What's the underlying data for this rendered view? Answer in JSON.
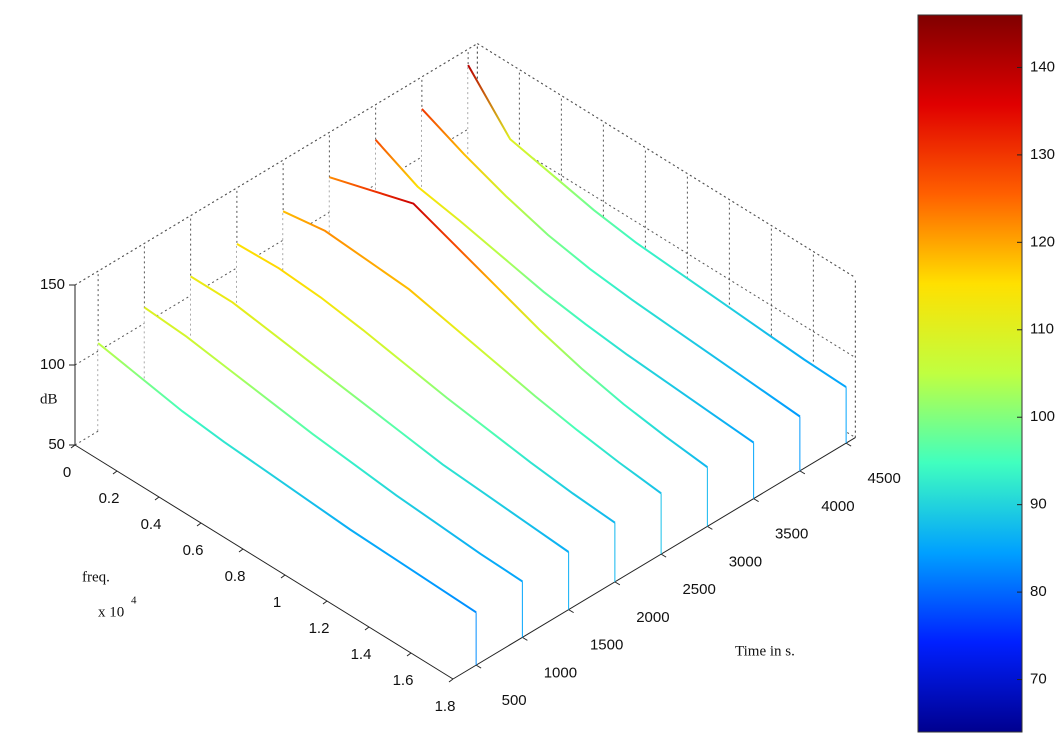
{
  "chart_data": {
    "type": "waterfall",
    "x_label": "freq.",
    "x_multiplier": "x 10",
    "x_exponent": "4",
    "y_label": "Time in s.",
    "z_label": "dB",
    "x": [
      0,
      0.2,
      0.4,
      0.6,
      0.8,
      1,
      1.2,
      1.4,
      1.6,
      1.8
    ],
    "xlim": [
      0,
      1.8
    ],
    "xticks": [
      0,
      0.2,
      0.4,
      0.6,
      0.8,
      1,
      1.2,
      1.4,
      1.6,
      1.8
    ],
    "ylim": [
      250,
      4600
    ],
    "yticks": [
      500,
      1000,
      1500,
      2000,
      2500,
      3000,
      3500,
      4000,
      4500
    ],
    "zlim": [
      50,
      150
    ],
    "zticks": [
      50,
      100,
      150
    ],
    "grid": true,
    "series": [
      {
        "y": 4500,
        "values": [
          140,
          110,
          104,
          98,
          94,
          92,
          90,
          88,
          86,
          85
        ]
      },
      {
        "y": 4000,
        "values": [
          130,
          118,
          108,
          100,
          95,
          92,
          90,
          88,
          86,
          84
        ]
      },
      {
        "y": 3500,
        "values": [
          128,
          115,
          110,
          104,
          98,
          94,
          91,
          89,
          87,
          85
        ]
      },
      {
        "y": 3000,
        "values": [
          122,
          130,
          138,
          128,
          118,
          108,
          100,
          94,
          90,
          87
        ]
      },
      {
        "y": 2500,
        "values": [
          118,
          122,
          120,
          118,
          112,
          106,
          100,
          95,
          91,
          88
        ]
      },
      {
        "y": 2000,
        "values": [
          115,
          116,
          114,
          110,
          105,
          100,
          96,
          92,
          89,
          87
        ]
      },
      {
        "y": 1500,
        "values": [
          112,
          112,
          108,
          104,
          100,
          96,
          92,
          90,
          88,
          86
        ]
      },
      {
        "y": 1000,
        "values": [
          110,
          108,
          104,
          100,
          96,
          93,
          90,
          88,
          86,
          85
        ]
      },
      {
        "y": 500,
        "values": [
          105,
          100,
          95,
          92,
          90,
          88,
          86,
          85,
          84,
          83
        ]
      }
    ],
    "colorbar": {
      "clim": [
        64,
        146
      ],
      "ticks": [
        70,
        80,
        90,
        100,
        110,
        120,
        130,
        140
      ],
      "colormap": [
        "#00008f",
        "#0020ff",
        "#00a0ff",
        "#40ffbf",
        "#c0ff40",
        "#ffe000",
        "#ff6000",
        "#e00000",
        "#800000"
      ]
    }
  }
}
